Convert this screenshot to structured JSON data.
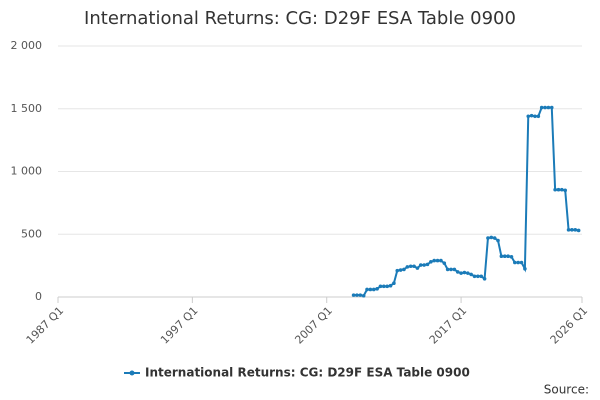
{
  "chart_data": {
    "type": "line",
    "title": "International Returns: CG: D29F ESA Table 0900",
    "source": "Source:",
    "x": [
      "2009 Q1",
      "2009 Q2",
      "2009 Q3",
      "2009 Q4",
      "2010 Q1",
      "2010 Q2",
      "2010 Q3",
      "2010 Q4",
      "2011 Q1",
      "2011 Q2",
      "2011 Q3",
      "2011 Q4",
      "2012 Q1",
      "2012 Q2",
      "2012 Q3",
      "2012 Q4",
      "2013 Q1",
      "2013 Q2",
      "2013 Q3",
      "2013 Q4",
      "2014 Q1",
      "2014 Q2",
      "2014 Q3",
      "2014 Q4",
      "2015 Q1",
      "2015 Q2",
      "2015 Q3",
      "2015 Q4",
      "2016 Q1",
      "2016 Q2",
      "2016 Q3",
      "2016 Q4",
      "2017 Q1",
      "2017 Q2",
      "2017 Q3",
      "2017 Q4",
      "2018 Q1",
      "2018 Q2",
      "2018 Q3",
      "2018 Q4",
      "2019 Q1",
      "2019 Q2",
      "2019 Q3",
      "2019 Q4",
      "2020 Q1",
      "2020 Q2",
      "2020 Q3",
      "2020 Q4",
      "2021 Q1",
      "2021 Q2",
      "2021 Q3",
      "2021 Q4",
      "2022 Q1",
      "2022 Q2",
      "2022 Q3",
      "2022 Q4",
      "2023 Q1",
      "2023 Q2",
      "2023 Q3",
      "2023 Q4",
      "2024 Q1",
      "2024 Q2",
      "2024 Q3",
      "2024 Q4",
      "2025 Q1",
      "2025 Q2",
      "2025 Q3",
      "2025 Q4"
    ],
    "series": [
      {
        "name": "International Returns: CG: D29F ESA Table 0900",
        "color": "#1b7bb8",
        "values": [
          15,
          15,
          15,
          10,
          60,
          60,
          60,
          65,
          85,
          85,
          85,
          90,
          110,
          210,
          215,
          220,
          240,
          245,
          245,
          230,
          255,
          255,
          260,
          280,
          290,
          290,
          290,
          270,
          220,
          220,
          220,
          200,
          190,
          195,
          190,
          180,
          165,
          165,
          165,
          145,
          470,
          475,
          470,
          450,
          325,
          325,
          325,
          320,
          275,
          275,
          275,
          225,
          1440,
          1445,
          1440,
          1440,
          1510,
          1510,
          1510,
          1510,
          855,
          855,
          855,
          850,
          535,
          535,
          535,
          530
        ]
      }
    ],
    "xlim": [
      "1987 Q1",
      "2026 Q1"
    ],
    "xticks": [
      "1987 Q1",
      "1997 Q1",
      "2007 Q1",
      "2017 Q1",
      "2026 Q1"
    ],
    "ylim": [
      0,
      2000
    ],
    "yticks": [
      0,
      500,
      {
        "value": 1000,
        "label": "1 000"
      },
      {
        "value": 1500,
        "label": "1 500"
      },
      {
        "value": 2000,
        "label": "2 000"
      }
    ],
    "grid": true
  }
}
